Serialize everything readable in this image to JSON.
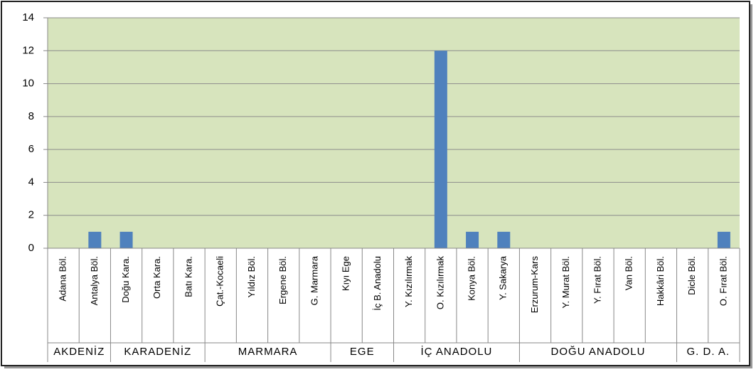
{
  "chart_data": {
    "type": "bar",
    "categories": [
      "Adana Böl.",
      "Antalya Böl.",
      "Doğu Kara.",
      "Orta Kara.",
      "Batı Kara.",
      "Çat.-Kocaeli",
      "Yıldız Böl.",
      "Ergene Böl.",
      "G. Marmara",
      "Kıyı Ege",
      "İç B. Anadolu",
      "Y. Kızılırmak",
      "O. Kızılırmak",
      "Konya Böl.",
      "Y. Sakarya",
      "Erzurum-Kars",
      "Y. Murat Böl.",
      "Y. Fırat Böl.",
      "Van Böl.",
      "Hakkâri Böl.",
      "Dicle Böl.",
      "O. Fırat Böl."
    ],
    "values": [
      0,
      1,
      1,
      0,
      0,
      0,
      0,
      0,
      0,
      0,
      0,
      0,
      12,
      1,
      1,
      0,
      0,
      0,
      0,
      0,
      0,
      1
    ],
    "groups": [
      {
        "name": "AKDENİZ",
        "size": 2
      },
      {
        "name": "KARADENİZ",
        "size": 3
      },
      {
        "name": "MARMARA",
        "size": 4
      },
      {
        "name": "EGE",
        "size": 2
      },
      {
        "name": "İÇ ANADOLU",
        "size": 4
      },
      {
        "name": "DOĞU ANADOLU",
        "size": 5
      },
      {
        "name": "G. D. A.",
        "size": 2
      }
    ],
    "color": "#4f81bd",
    "plot_background": "#d7e4bd",
    "ylim": [
      0,
      14
    ],
    "yticks": [
      0,
      2,
      4,
      6,
      8,
      10,
      12,
      14
    ],
    "grid": true
  }
}
